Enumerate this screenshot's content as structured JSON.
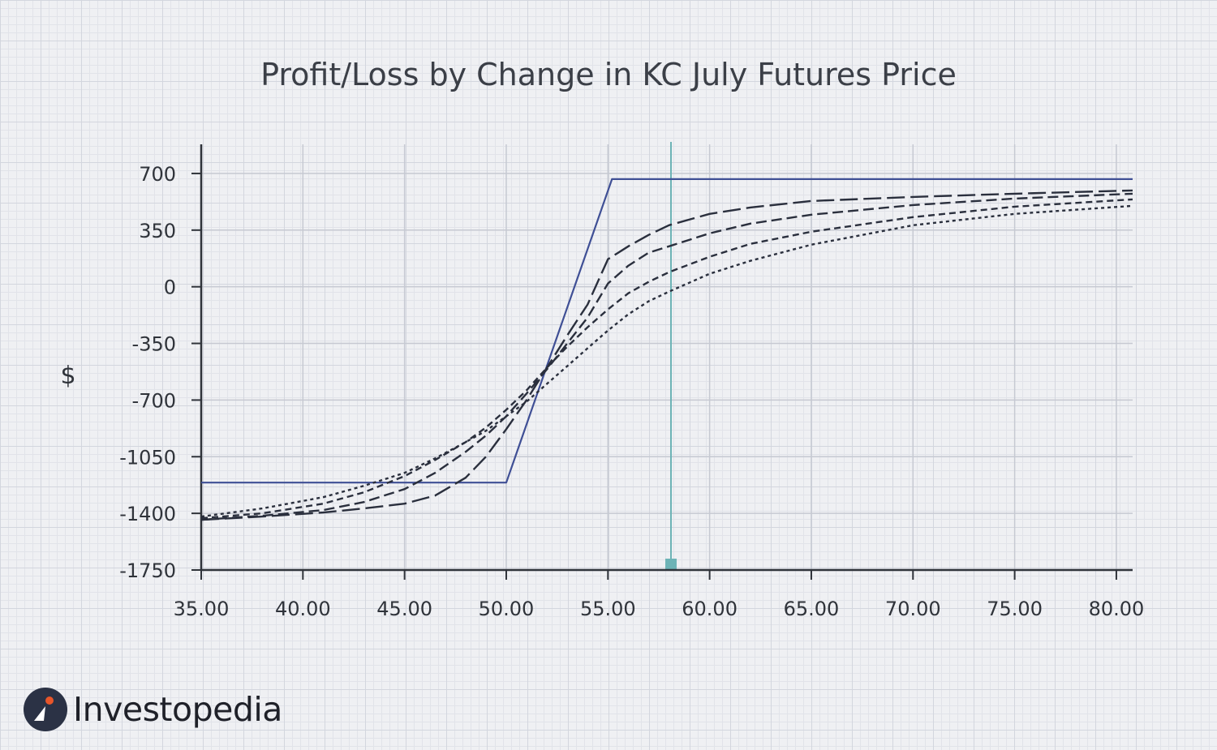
{
  "chart_data": {
    "type": "line",
    "title": "Profit/Loss by Change in KC July Futures Price",
    "ylabel": "$",
    "xlabel": "",
    "xlim": [
      35,
      80.8
    ],
    "ylim": [
      -1750,
      880
    ],
    "x_ticks": [
      "35.00",
      "40.00",
      "45.00",
      "50.00",
      "55.00",
      "60.00",
      "65.00",
      "70.00",
      "75.00",
      "80.00"
    ],
    "y_ticks": [
      "700",
      "350",
      "0",
      "-350",
      "-700",
      "-1050",
      "-1400",
      "-1750"
    ],
    "grid": true,
    "current_price_marker": 58.1,
    "series": [
      {
        "style": "solid",
        "color": "#3f4f95",
        "x": [
          35,
          50,
          55.2,
          80.8
        ],
        "y": [
          -1210,
          -1210,
          665,
          665
        ]
      },
      {
        "style": "long-dash",
        "color": "#2a2f3d",
        "x": [
          35,
          38,
          41,
          43,
          45,
          46.5,
          48,
          49,
          50,
          51,
          52,
          53,
          54,
          55,
          56,
          57,
          58,
          60,
          62,
          65,
          70,
          75,
          80.8
        ],
        "y": [
          -1440,
          -1420,
          -1395,
          -1370,
          -1340,
          -1290,
          -1180,
          -1050,
          -880,
          -700,
          -500,
          -300,
          -110,
          170,
          250,
          320,
          380,
          450,
          490,
          530,
          555,
          575,
          595
        ]
      },
      {
        "style": "medium-dash",
        "color": "#2a2f3d",
        "x": [
          35,
          38,
          41,
          43,
          45,
          46.5,
          48,
          49,
          50,
          51,
          52,
          53,
          54,
          55,
          56,
          57,
          58,
          60,
          62,
          65,
          70,
          75,
          80.8
        ],
        "y": [
          -1440,
          -1415,
          -1380,
          -1330,
          -1250,
          -1150,
          -1020,
          -920,
          -800,
          -660,
          -510,
          -350,
          -190,
          20,
          130,
          210,
          250,
          330,
          390,
          445,
          505,
          545,
          575
        ]
      },
      {
        "style": "short-dash",
        "color": "#2a2f3d",
        "x": [
          35,
          38,
          41,
          43,
          45,
          46.5,
          48,
          49,
          50,
          51,
          52,
          53,
          54,
          55,
          56,
          57,
          58,
          60,
          62,
          65,
          70,
          75,
          80.8
        ],
        "y": [
          -1430,
          -1400,
          -1340,
          -1270,
          -1170,
          -1070,
          -960,
          -870,
          -760,
          -640,
          -500,
          -370,
          -250,
          -140,
          -40,
          30,
          90,
          185,
          265,
          340,
          430,
          495,
          540
        ]
      },
      {
        "style": "dotted",
        "color": "#2a2f3d",
        "x": [
          35,
          38,
          41,
          43,
          45,
          46.5,
          48,
          49,
          50,
          51,
          52,
          53,
          54,
          55,
          56,
          57,
          58,
          60,
          62,
          65,
          70,
          75,
          80.8
        ],
        "y": [
          -1420,
          -1370,
          -1300,
          -1230,
          -1150,
          -1060,
          -960,
          -890,
          -800,
          -710,
          -600,
          -490,
          -380,
          -270,
          -170,
          -90,
          -30,
          80,
          160,
          260,
          380,
          450,
          500
        ]
      }
    ]
  },
  "colors": {
    "axis": "#2f333a",
    "gridline": "#c6c9d2",
    "marker_line": "#6db3b6",
    "marker_square": "#6db3b6",
    "payoff_line": "#3f4f95"
  },
  "brand": {
    "name": "Investopedia",
    "logo_icon": "investopedia-logo-icon"
  }
}
